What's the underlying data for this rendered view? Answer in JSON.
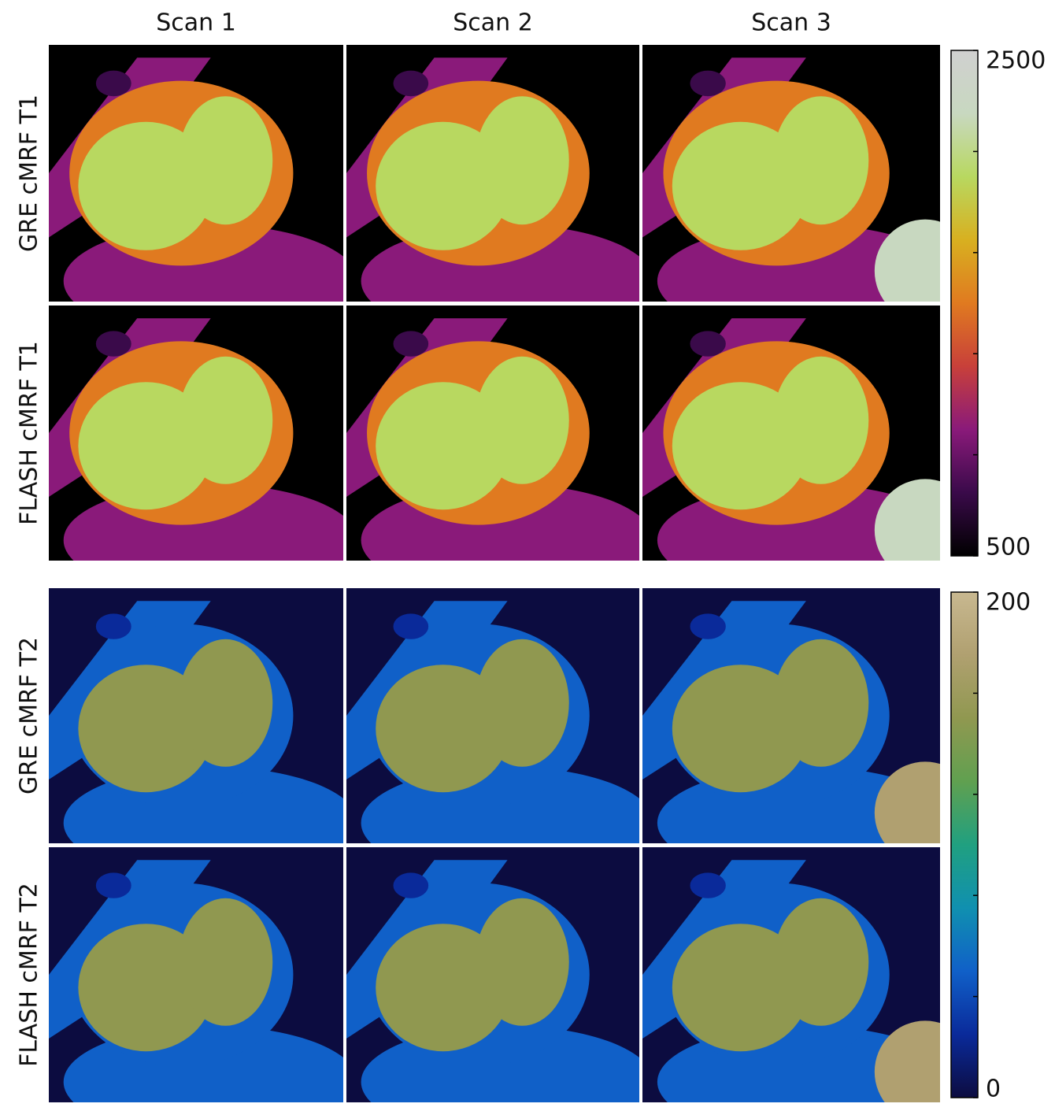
{
  "columns": [
    "Scan 1",
    "Scan 2",
    "Scan 3"
  ],
  "maps": [
    {
      "rows": [
        "GRE cMRF T1",
        "FLASH cMRF T1"
      ],
      "colorbar": {
        "lim": [
          500,
          2500
        ],
        "ticks": [
          500,
          900,
          1300,
          1700,
          2100,
          2500
        ],
        "colors": [
          "#000000",
          "#3a0a4a",
          "#8a1a7a",
          "#c8403a",
          "#e07a20",
          "#d8b020",
          "#b8d860",
          "#c8d8c0",
          "#d0d0d0"
        ]
      }
    },
    {
      "rows": [
        "GRE cMRF T2",
        "FLASH cMRF T2"
      ],
      "colorbar": {
        "lim": [
          0,
          200
        ],
        "ticks": [
          0,
          40,
          80,
          120,
          160,
          200
        ],
        "colors": [
          "#0c0c40",
          "#0a2a9a",
          "#1060c8",
          "#1090b0",
          "#20a080",
          "#60a050",
          "#909850",
          "#b0a070",
          "#c8b890"
        ]
      }
    }
  ]
}
